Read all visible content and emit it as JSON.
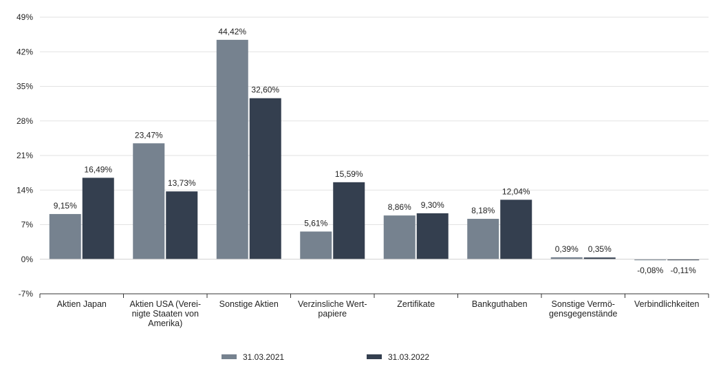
{
  "chart_data": {
    "type": "bar",
    "categories": [
      [
        "Aktien Japan"
      ],
      [
        "Aktien USA (Verei-",
        "nigte Staaten von",
        "Amerika)"
      ],
      [
        "Sonstige Aktien"
      ],
      [
        "Verzinsliche Wert-",
        "papiere"
      ],
      [
        "Zertifikate"
      ],
      [
        "Bankguthaben"
      ],
      [
        "Sonstige Vermö-",
        "gensgegenstände"
      ],
      [
        "Verbindlichkeiten"
      ]
    ],
    "series": [
      {
        "name": "31.03.2021",
        "color": "#76828f",
        "values": [
          9.15,
          23.47,
          44.42,
          5.61,
          8.86,
          8.18,
          0.39,
          -0.08
        ],
        "labels": [
          "9,15%",
          "23,47%",
          "44,42%",
          "5,61%",
          "8,86%",
          "8,18%",
          "0,39%",
          "-0,08%"
        ]
      },
      {
        "name": "31.03.2022",
        "color": "#343f4f",
        "values": [
          16.49,
          13.73,
          32.6,
          15.59,
          9.3,
          12.04,
          0.35,
          -0.11
        ],
        "labels": [
          "16,49%",
          "13,73%",
          "32,60%",
          "15,59%",
          "9,30%",
          "12,04%",
          "0,35%",
          "-0,11%"
        ]
      }
    ],
    "ylim": [
      -7,
      49
    ],
    "yticks": [
      -7,
      0,
      7,
      14,
      21,
      28,
      35,
      42,
      49
    ],
    "ytick_labels": [
      "-7%",
      "0%",
      "7%",
      "14%",
      "21%",
      "28%",
      "35%",
      "42%",
      "49%"
    ],
    "grid": true,
    "legend_position": "bottom"
  }
}
